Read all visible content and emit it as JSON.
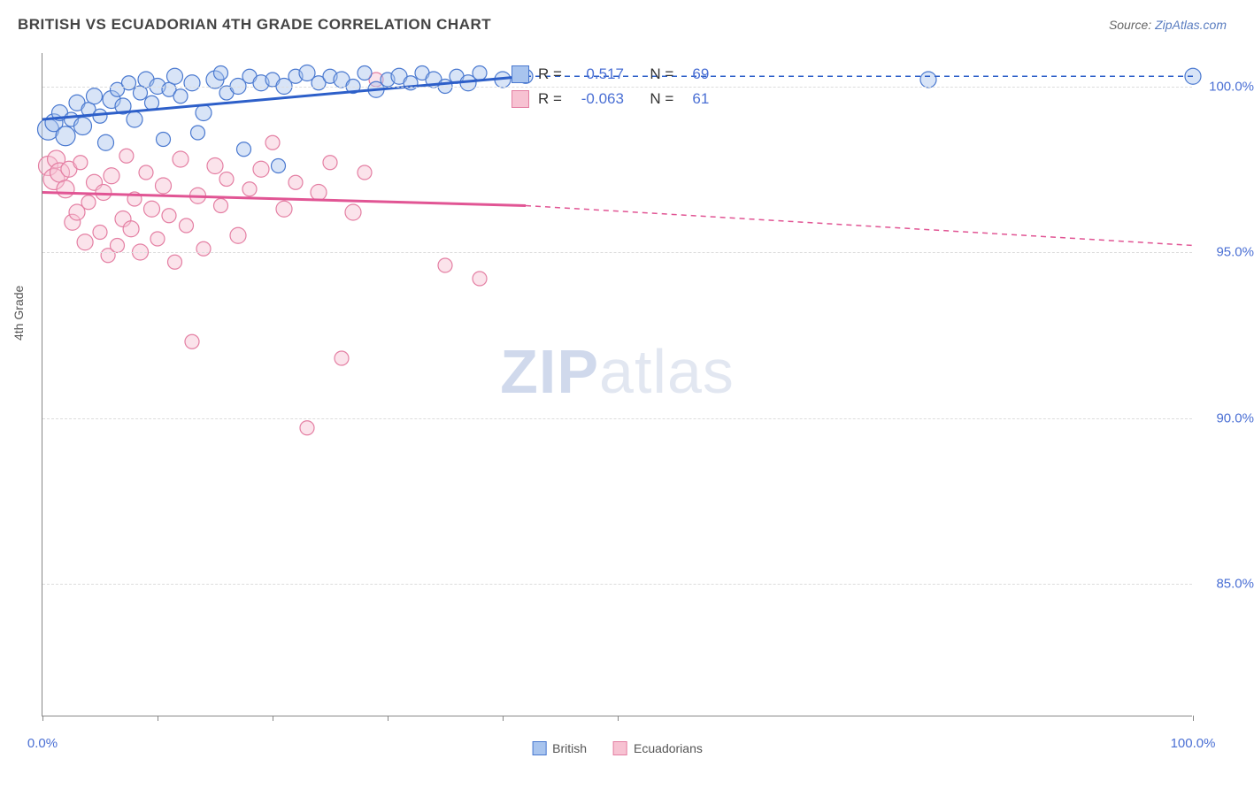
{
  "title": "BRITISH VS ECUADORIAN 4TH GRADE CORRELATION CHART",
  "source_label": "Source:",
  "source_link": "ZipAtlas.com",
  "ylabel": "4th Grade",
  "watermark": {
    "bold": "ZIP",
    "rest": "atlas"
  },
  "colors": {
    "british_fill": "#a8c4ee",
    "british_stroke": "#4a79d0",
    "british_line": "#2d5fc9",
    "ecuadorian_fill": "#f7c2d2",
    "ecuadorian_stroke": "#e47fa3",
    "ecuadorian_line": "#e15594",
    "axis_label": "#4a6fd4",
    "grid": "#dddddd",
    "axis": "#888888",
    "text": "#555555"
  },
  "chart": {
    "type": "scatter",
    "xlim": [
      0,
      100
    ],
    "ylim": [
      81,
      101
    ],
    "yticks": [
      85,
      90,
      95,
      100
    ],
    "ytick_labels": [
      "85.0%",
      "90.0%",
      "95.0%",
      "100.0%"
    ],
    "xtick_positions": [
      0,
      10,
      20,
      30,
      40,
      50,
      100
    ],
    "xtick_labels": {
      "0": "0.0%",
      "100": "100.0%"
    },
    "marker_shape": "circle",
    "marker_fill_opacity": 0.45,
    "marker_stroke_width": 1.2,
    "trend_line_width": 3,
    "trend_dash_extrapolate": "6,5"
  },
  "series": {
    "british": {
      "label": "British",
      "stats": {
        "R_label": "R =",
        "R": "0.517",
        "N_label": "N =",
        "N": "69"
      },
      "trend": {
        "x1": 0,
        "y1": 99.0,
        "x2": 42,
        "y2": 100.3,
        "dash_to_x": 100,
        "dash_to_y": 100.3
      },
      "points": [
        {
          "x": 0.5,
          "y": 98.7,
          "r": 12
        },
        {
          "x": 1,
          "y": 98.9,
          "r": 10
        },
        {
          "x": 1.5,
          "y": 99.2,
          "r": 9
        },
        {
          "x": 2,
          "y": 98.5,
          "r": 11
        },
        {
          "x": 2.5,
          "y": 99.0,
          "r": 8
        },
        {
          "x": 3,
          "y": 99.5,
          "r": 9
        },
        {
          "x": 3.5,
          "y": 98.8,
          "r": 10
        },
        {
          "x": 4,
          "y": 99.3,
          "r": 8
        },
        {
          "x": 4.5,
          "y": 99.7,
          "r": 9
        },
        {
          "x": 5,
          "y": 99.1,
          "r": 8
        },
        {
          "x": 5.5,
          "y": 98.3,
          "r": 9
        },
        {
          "x": 6,
          "y": 99.6,
          "r": 10
        },
        {
          "x": 6.5,
          "y": 99.9,
          "r": 8
        },
        {
          "x": 7,
          "y": 99.4,
          "r": 9
        },
        {
          "x": 7.5,
          "y": 100.1,
          "r": 8
        },
        {
          "x": 8,
          "y": 99.0,
          "r": 9
        },
        {
          "x": 8.5,
          "y": 99.8,
          "r": 8
        },
        {
          "x": 9,
          "y": 100.2,
          "r": 9
        },
        {
          "x": 9.5,
          "y": 99.5,
          "r": 8
        },
        {
          "x": 10,
          "y": 100.0,
          "r": 9
        },
        {
          "x": 10.5,
          "y": 98.4,
          "r": 8
        },
        {
          "x": 11,
          "y": 99.9,
          "r": 8
        },
        {
          "x": 11.5,
          "y": 100.3,
          "r": 9
        },
        {
          "x": 12,
          "y": 99.7,
          "r": 8
        },
        {
          "x": 13,
          "y": 100.1,
          "r": 9
        },
        {
          "x": 13.5,
          "y": 98.6,
          "r": 8
        },
        {
          "x": 14,
          "y": 99.2,
          "r": 9
        },
        {
          "x": 15,
          "y": 100.2,
          "r": 10
        },
        {
          "x": 15.5,
          "y": 100.4,
          "r": 8
        },
        {
          "x": 16,
          "y": 99.8,
          "r": 8
        },
        {
          "x": 17,
          "y": 100.0,
          "r": 9
        },
        {
          "x": 17.5,
          "y": 98.1,
          "r": 8
        },
        {
          "x": 18,
          "y": 100.3,
          "r": 8
        },
        {
          "x": 19,
          "y": 100.1,
          "r": 9
        },
        {
          "x": 20,
          "y": 100.2,
          "r": 8
        },
        {
          "x": 20.5,
          "y": 97.6,
          "r": 8
        },
        {
          "x": 21,
          "y": 100.0,
          "r": 9
        },
        {
          "x": 22,
          "y": 100.3,
          "r": 8
        },
        {
          "x": 23,
          "y": 100.4,
          "r": 9
        },
        {
          "x": 24,
          "y": 100.1,
          "r": 8
        },
        {
          "x": 25,
          "y": 100.3,
          "r": 8
        },
        {
          "x": 26,
          "y": 100.2,
          "r": 9
        },
        {
          "x": 27,
          "y": 100.0,
          "r": 8
        },
        {
          "x": 28,
          "y": 100.4,
          "r": 8
        },
        {
          "x": 29,
          "y": 99.9,
          "r": 9
        },
        {
          "x": 30,
          "y": 100.2,
          "r": 8
        },
        {
          "x": 31,
          "y": 100.3,
          "r": 9
        },
        {
          "x": 32,
          "y": 100.1,
          "r": 8
        },
        {
          "x": 33,
          "y": 100.4,
          "r": 8
        },
        {
          "x": 34,
          "y": 100.2,
          "r": 9
        },
        {
          "x": 35,
          "y": 100.0,
          "r": 8
        },
        {
          "x": 36,
          "y": 100.3,
          "r": 8
        },
        {
          "x": 37,
          "y": 100.1,
          "r": 9
        },
        {
          "x": 38,
          "y": 100.4,
          "r": 8
        },
        {
          "x": 40,
          "y": 100.2,
          "r": 9
        },
        {
          "x": 42,
          "y": 100.3,
          "r": 8
        },
        {
          "x": 77,
          "y": 100.2,
          "r": 9
        },
        {
          "x": 100,
          "y": 100.3,
          "r": 9
        }
      ]
    },
    "ecuadorian": {
      "label": "Ecuadorians",
      "stats": {
        "R_label": "R =",
        "R": "-0.063",
        "N_label": "N =",
        "N": "61"
      },
      "trend": {
        "x1": 0,
        "y1": 96.8,
        "x2": 42,
        "y2": 96.4,
        "dash_to_x": 100,
        "dash_to_y": 95.2
      },
      "points": [
        {
          "x": 0.5,
          "y": 97.6,
          "r": 11
        },
        {
          "x": 1,
          "y": 97.2,
          "r": 12
        },
        {
          "x": 1.2,
          "y": 97.8,
          "r": 10
        },
        {
          "x": 1.5,
          "y": 97.4,
          "r": 11
        },
        {
          "x": 2,
          "y": 96.9,
          "r": 10
        },
        {
          "x": 2.3,
          "y": 97.5,
          "r": 9
        },
        {
          "x": 2.6,
          "y": 95.9,
          "r": 9
        },
        {
          "x": 3,
          "y": 96.2,
          "r": 9
        },
        {
          "x": 3.3,
          "y": 97.7,
          "r": 8
        },
        {
          "x": 3.7,
          "y": 95.3,
          "r": 9
        },
        {
          "x": 4,
          "y": 96.5,
          "r": 8
        },
        {
          "x": 4.5,
          "y": 97.1,
          "r": 9
        },
        {
          "x": 5,
          "y": 95.6,
          "r": 8
        },
        {
          "x": 5.3,
          "y": 96.8,
          "r": 9
        },
        {
          "x": 5.7,
          "y": 94.9,
          "r": 8
        },
        {
          "x": 6,
          "y": 97.3,
          "r": 9
        },
        {
          "x": 6.5,
          "y": 95.2,
          "r": 8
        },
        {
          "x": 7,
          "y": 96.0,
          "r": 9
        },
        {
          "x": 7.3,
          "y": 97.9,
          "r": 8
        },
        {
          "x": 7.7,
          "y": 95.7,
          "r": 9
        },
        {
          "x": 8,
          "y": 96.6,
          "r": 8
        },
        {
          "x": 8.5,
          "y": 95.0,
          "r": 9
        },
        {
          "x": 9,
          "y": 97.4,
          "r": 8
        },
        {
          "x": 9.5,
          "y": 96.3,
          "r": 9
        },
        {
          "x": 10,
          "y": 95.4,
          "r": 8
        },
        {
          "x": 10.5,
          "y": 97.0,
          "r": 9
        },
        {
          "x": 11,
          "y": 96.1,
          "r": 8
        },
        {
          "x": 11.5,
          "y": 94.7,
          "r": 8
        },
        {
          "x": 12,
          "y": 97.8,
          "r": 9
        },
        {
          "x": 12.5,
          "y": 95.8,
          "r": 8
        },
        {
          "x": 13,
          "y": 92.3,
          "r": 8
        },
        {
          "x": 13.5,
          "y": 96.7,
          "r": 9
        },
        {
          "x": 14,
          "y": 95.1,
          "r": 8
        },
        {
          "x": 15,
          "y": 97.6,
          "r": 9
        },
        {
          "x": 15.5,
          "y": 96.4,
          "r": 8
        },
        {
          "x": 16,
          "y": 97.2,
          "r": 8
        },
        {
          "x": 17,
          "y": 95.5,
          "r": 9
        },
        {
          "x": 18,
          "y": 96.9,
          "r": 8
        },
        {
          "x": 19,
          "y": 97.5,
          "r": 9
        },
        {
          "x": 20,
          "y": 98.3,
          "r": 8
        },
        {
          "x": 21,
          "y": 96.3,
          "r": 9
        },
        {
          "x": 22,
          "y": 97.1,
          "r": 8
        },
        {
          "x": 23,
          "y": 89.7,
          "r": 8
        },
        {
          "x": 24,
          "y": 96.8,
          "r": 9
        },
        {
          "x": 25,
          "y": 97.7,
          "r": 8
        },
        {
          "x": 26,
          "y": 91.8,
          "r": 8
        },
        {
          "x": 27,
          "y": 96.2,
          "r": 9
        },
        {
          "x": 28,
          "y": 97.4,
          "r": 8
        },
        {
          "x": 29,
          "y": 100.2,
          "r": 8
        },
        {
          "x": 35,
          "y": 94.6,
          "r": 8
        },
        {
          "x": 38,
          "y": 94.2,
          "r": 8
        }
      ]
    }
  },
  "legend_bottom": [
    {
      "key": "british",
      "label": "British"
    },
    {
      "key": "ecuadorian",
      "label": "Ecuadorians"
    }
  ]
}
